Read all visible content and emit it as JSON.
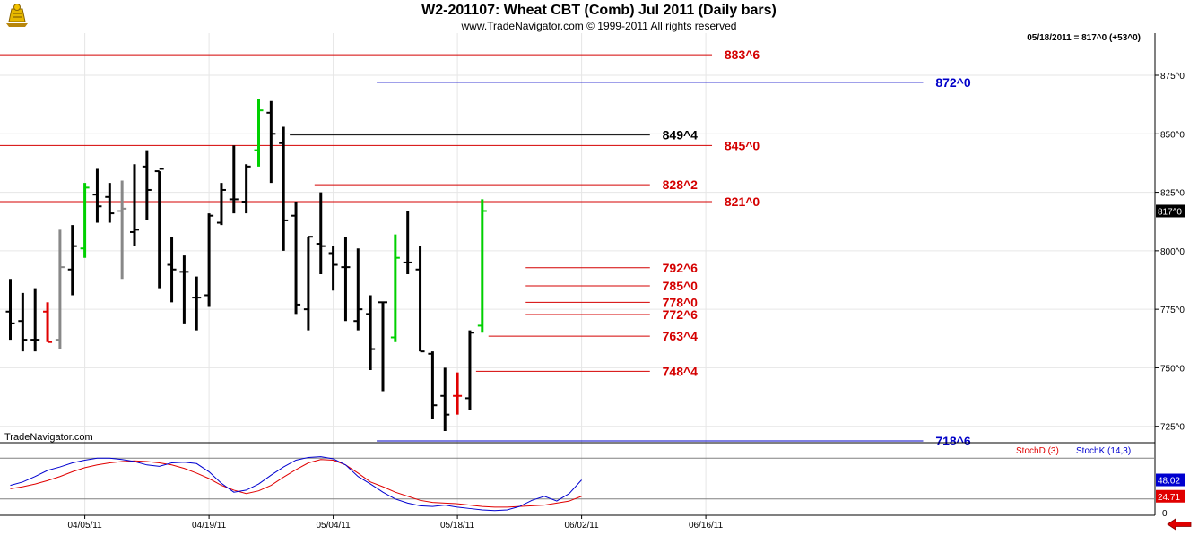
{
  "header": {
    "title": "W2-201107:  Wheat CBT (Comb) Jul 2011  (Daily bars)",
    "copyright": "www.TradeNavigator.com © 1999-2011 All rights reserved",
    "last_quote": "05/18/2011 = 817^0 (+53^0)",
    "brand": "TradeNavigator.com"
  },
  "colors": {
    "up_bar": "#000000",
    "down_bar": "#000000",
    "green_bar": "#00d000",
    "red_bar": "#e00000",
    "gray_bar": "#888888",
    "red_level": "#d40000",
    "blue_level": "#0000c8",
    "black_level": "#000000",
    "stochD": "#e00000",
    "stochK": "#0000d0"
  },
  "chart_data": [
    {
      "type": "ohlc",
      "title": "W2-201107:  Wheat CBT (Comb) Jul 2011  (Daily bars)",
      "ylim": [
        718,
        893
      ],
      "y_ticks": [
        725,
        750,
        775,
        800,
        825,
        850,
        875
      ],
      "y_tick_labels": [
        "725^0",
        "750^0",
        "775^0",
        "800^0",
        "825^0",
        "850^0",
        "875^0"
      ],
      "x_labels": [
        "04/05/11",
        "04/19/11",
        "05/04/11",
        "05/18/11",
        "06/02/11",
        "06/16/11"
      ],
      "x_label_index": [
        6,
        16,
        26,
        36,
        46,
        56
      ],
      "last_value_label": "817^0",
      "bars": [
        {
          "o": 774,
          "h": 788,
          "l": 762,
          "c": 769,
          "color": "black"
        },
        {
          "o": 770,
          "h": 782,
          "l": 757,
          "c": 762,
          "color": "black"
        },
        {
          "o": 762,
          "h": 784,
          "l": 757,
          "c": 762,
          "color": "black"
        },
        {
          "o": 774,
          "h": 778,
          "l": 761,
          "c": 761,
          "color": "red"
        },
        {
          "o": 762,
          "h": 809,
          "l": 758,
          "c": 793,
          "color": "gray"
        },
        {
          "o": 792,
          "h": 811,
          "l": 781,
          "c": 802,
          "color": "black"
        },
        {
          "o": 801,
          "h": 829,
          "l": 797,
          "c": 827,
          "color": "green"
        },
        {
          "o": 824,
          "h": 835,
          "l": 812,
          "c": 819,
          "color": "black"
        },
        {
          "o": 823,
          "h": 829,
          "l": 812,
          "c": 816,
          "color": "black"
        },
        {
          "o": 817,
          "h": 830,
          "l": 788,
          "c": 818,
          "color": "gray"
        },
        {
          "o": 808,
          "h": 837,
          "l": 802,
          "c": 809,
          "color": "black"
        },
        {
          "o": 836,
          "h": 843,
          "l": 813,
          "c": 826,
          "color": "black"
        },
        {
          "o": 834,
          "h": 834,
          "l": 784,
          "c": 835,
          "color": "black"
        },
        {
          "o": 794,
          "h": 806,
          "l": 778,
          "c": 792,
          "color": "black"
        },
        {
          "o": 791,
          "h": 798,
          "l": 769,
          "c": 791,
          "color": "black"
        },
        {
          "o": 780,
          "h": 789,
          "l": 766,
          "c": 780,
          "color": "black"
        },
        {
          "o": 781,
          "h": 816,
          "l": 776,
          "c": 815,
          "color": "black"
        },
        {
          "o": 812,
          "h": 829,
          "l": 811,
          "c": 826,
          "color": "black"
        },
        {
          "o": 822,
          "h": 845,
          "l": 816,
          "c": 822,
          "color": "black"
        },
        {
          "o": 821,
          "h": 837,
          "l": 816,
          "c": 836,
          "color": "black"
        },
        {
          "o": 843,
          "h": 865,
          "l": 836,
          "c": 860,
          "color": "green"
        },
        {
          "o": 859,
          "h": 864,
          "l": 829,
          "c": 850,
          "color": "black"
        },
        {
          "o": 846,
          "h": 853,
          "l": 800,
          "c": 813,
          "color": "black"
        },
        {
          "o": 815,
          "h": 821,
          "l": 773,
          "c": 777,
          "color": "black"
        },
        {
          "o": 775,
          "h": 806,
          "l": 766,
          "c": 806,
          "color": "black"
        },
        {
          "o": 803,
          "h": 825,
          "l": 790,
          "c": 802,
          "color": "black"
        },
        {
          "o": 799,
          "h": 802,
          "l": 783,
          "c": 794,
          "color": "black"
        },
        {
          "o": 793,
          "h": 806,
          "l": 770,
          "c": 793,
          "color": "black"
        },
        {
          "o": 770,
          "h": 801,
          "l": 766,
          "c": 775,
          "color": "black"
        },
        {
          "o": 773,
          "h": 781,
          "l": 749,
          "c": 758,
          "color": "black"
        },
        {
          "o": 778,
          "h": 778,
          "l": 740,
          "c": 778,
          "color": "black"
        },
        {
          "o": 763,
          "h": 807,
          "l": 761,
          "c": 797,
          "color": "green"
        },
        {
          "o": 795,
          "h": 817,
          "l": 790,
          "c": 795,
          "color": "black"
        },
        {
          "o": 792,
          "h": 802,
          "l": 757,
          "c": 757,
          "color": "black"
        },
        {
          "o": 756,
          "h": 757,
          "l": 728,
          "c": 734,
          "color": "black"
        },
        {
          "o": 738,
          "h": 750,
          "l": 723,
          "c": 730,
          "color": "black"
        },
        {
          "o": 738,
          "h": 748,
          "l": 730,
          "c": 738,
          "color": "red"
        },
        {
          "o": 737,
          "h": 766,
          "l": 732,
          "c": 765,
          "color": "black"
        },
        {
          "o": 768,
          "h": 822,
          "l": 765,
          "c": 817,
          "color": "green"
        }
      ],
      "levels": [
        {
          "label": "883^6",
          "value": 883.75,
          "color": "red",
          "from": 0,
          "to": 56.5,
          "label_at": 57.5
        },
        {
          "label": "872^0",
          "value": 872,
          "color": "blue",
          "from": 29.5,
          "to": 73.5,
          "label_at": 74.5
        },
        {
          "label": "849^4",
          "value": 849.5,
          "color": "black",
          "from": 22.5,
          "to": 51.5,
          "label_at": 52.5
        },
        {
          "label": "845^0",
          "value": 845,
          "color": "red",
          "from": 0,
          "to": 56.5,
          "label_at": 57.5
        },
        {
          "label": "828^2",
          "value": 828.25,
          "color": "red",
          "from": 24.5,
          "to": 51.5,
          "label_at": 52.5
        },
        {
          "label": "821^0",
          "value": 821,
          "color": "red",
          "from": 0,
          "to": 56.5,
          "label_at": 57.5
        },
        {
          "label": "792^6",
          "value": 792.75,
          "color": "red",
          "from": 41.5,
          "to": 51.5,
          "label_at": 52.5
        },
        {
          "label": "785^0",
          "value": 785,
          "color": "red",
          "from": 41.5,
          "to": 51.5,
          "label_at": 52.5
        },
        {
          "label": "778^0",
          "value": 778,
          "color": "red",
          "from": 41.5,
          "to": 51.5,
          "label_at": 52.5
        },
        {
          "label": "772^6",
          "value": 772.75,
          "color": "red",
          "from": 41.5,
          "to": 51.5,
          "label_at": 52.5
        },
        {
          "label": "763^4",
          "value": 763.5,
          "color": "red",
          "from": 38.5,
          "to": 51.5,
          "label_at": 52.5
        },
        {
          "label": "748^4",
          "value": 748.5,
          "color": "red",
          "from": 37.5,
          "to": 51.5,
          "label_at": 52.5
        },
        {
          "label": "718^6",
          "value": 718.75,
          "color": "blue",
          "from": 29.5,
          "to": 73.5,
          "label_at": 74.5
        }
      ]
    },
    {
      "type": "line",
      "ylim": [
        0,
        100
      ],
      "y_ticks": [
        0
      ],
      "y_tick_labels": [
        "0"
      ],
      "ref_lines": [
        80,
        20
      ],
      "legend": [
        "StochD (3)",
        "StochK (14,3)"
      ],
      "series": [
        {
          "name": "StochD (3)",
          "color": "red",
          "last_label": "24.71",
          "values": [
            35,
            38,
            42,
            47,
            53,
            60,
            66,
            70,
            73,
            75,
            76,
            75,
            73,
            70,
            65,
            58,
            50,
            40,
            33,
            28,
            32,
            40,
            52,
            63,
            73,
            78,
            77,
            70,
            58,
            45,
            38,
            30,
            24,
            18,
            15,
            14,
            13,
            11,
            9,
            8,
            8,
            9,
            10,
            11,
            14,
            17,
            24
          ]
        },
        {
          "name": "StochK (14,3)",
          "color": "blue",
          "last_label": "48.02",
          "values": [
            40,
            45,
            53,
            62,
            67,
            73,
            77,
            80,
            80,
            78,
            75,
            70,
            68,
            73,
            74,
            72,
            60,
            43,
            30,
            33,
            42,
            55,
            67,
            77,
            81,
            82,
            79,
            70,
            53,
            42,
            30,
            20,
            14,
            10,
            9,
            11,
            8,
            6,
            4,
            3,
            4,
            9,
            18,
            24,
            17,
            28,
            48
          ]
        }
      ]
    }
  ]
}
